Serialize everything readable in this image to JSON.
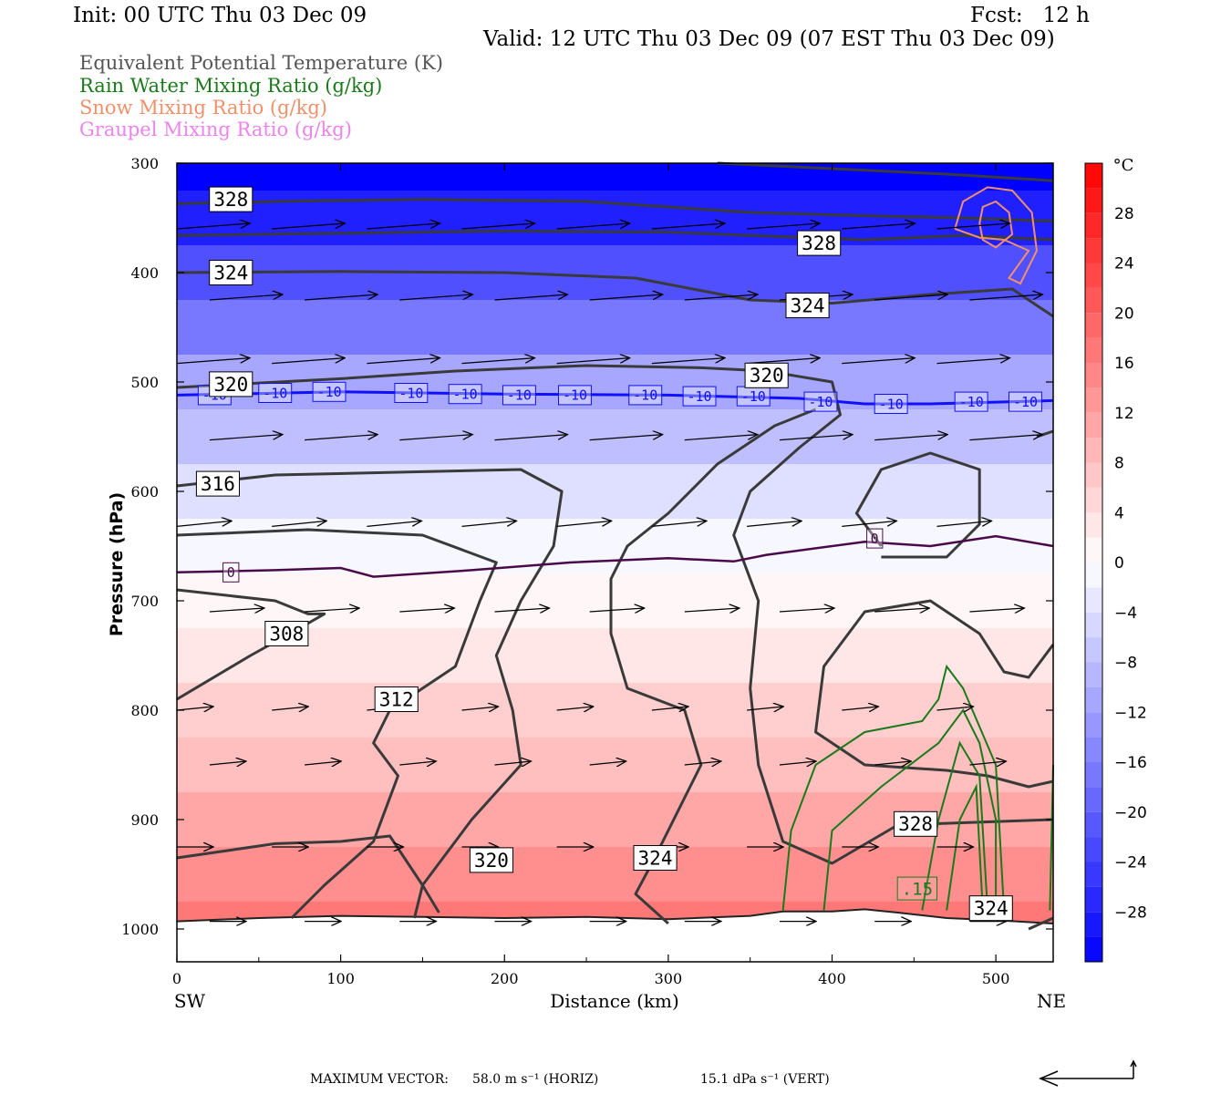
{
  "header": {
    "init": "Init: 00 UTC Thu 03 Dec 09",
    "fcst": "Fcst:   12 h",
    "valid": "Valid: 12 UTC Thu 03 Dec 09 (07 EST Thu 03 Dec 09)"
  },
  "variables": [
    {
      "label": "Equivalent Potential Temperature (K)",
      "color": "#555555"
    },
    {
      "label": "Rain Water Mixing Ratio (g/kg)",
      "color": "#1a7a1a"
    },
    {
      "label": "Snow Mixing Ratio (g/kg)",
      "color": "#f0906a"
    },
    {
      "label": "Graupel Mixing Ratio (g/kg)",
      "color": "#ee82ee"
    }
  ],
  "footer": {
    "max_vector_label": "MAXIMUM VECTOR:",
    "horiz": "58.0 m s⁻¹ (HORIZ)",
    "vert": "15.1 dPa s⁻¹ (VERT)"
  },
  "chart_data": {
    "type": "cross-section",
    "xlabel": "Distance (km)",
    "ylabel": "Pressure (hPa)",
    "x_left_label": "SW",
    "x_right_label": "NE",
    "xlim": [
      0,
      535
    ],
    "ylim": [
      1030,
      300
    ],
    "xticks": [
      0,
      100,
      200,
      300,
      400,
      500
    ],
    "yticks": [
      300,
      400,
      500,
      600,
      700,
      800,
      900,
      1000
    ],
    "colorbar": {
      "unit": "°C",
      "ticks": [
        28,
        24,
        20,
        16,
        12,
        8,
        4,
        0,
        -4,
        -8,
        -12,
        -16,
        -20,
        -24,
        -28
      ],
      "range": [
        -32,
        32
      ]
    },
    "temperature_layers": [
      {
        "p": 300,
        "t": -32
      },
      {
        "p": 350,
        "t": -28
      },
      {
        "p": 400,
        "t": -22
      },
      {
        "p": 450,
        "t": -17
      },
      {
        "p": 500,
        "t": -11
      },
      {
        "p": 550,
        "t": -8
      },
      {
        "p": 600,
        "t": -4
      },
      {
        "p": 650,
        "t": -1
      },
      {
        "p": 700,
        "t": 1
      },
      {
        "p": 750,
        "t": 3
      },
      {
        "p": 800,
        "t": 6
      },
      {
        "p": 850,
        "t": 8
      },
      {
        "p": 900,
        "t": 11
      },
      {
        "p": 950,
        "t": 14
      },
      {
        "p": 1000,
        "t": 17
      }
    ],
    "isotherm_labels": [
      {
        "text": "-10",
        "x": 23,
        "p": 512
      },
      {
        "text": "-10",
        "x": 60,
        "p": 510
      },
      {
        "text": "-10",
        "x": 93,
        "p": 509
      },
      {
        "text": "-10",
        "x": 143,
        "p": 510
      },
      {
        "text": "-10",
        "x": 176,
        "p": 511
      },
      {
        "text": "-10",
        "x": 209,
        "p": 512
      },
      {
        "text": "-10",
        "x": 243,
        "p": 512
      },
      {
        "text": "-10",
        "x": 286,
        "p": 512
      },
      {
        "text": "-10",
        "x": 319,
        "p": 513
      },
      {
        "text": "-10",
        "x": 352,
        "p": 513
      },
      {
        "text": "-10",
        "x": 393,
        "p": 518
      },
      {
        "text": "-10",
        "x": 436,
        "p": 520
      },
      {
        "text": "-10",
        "x": 485,
        "p": 518
      },
      {
        "text": "-10",
        "x": 518,
        "p": 518
      },
      {
        "text": "0",
        "x": 33,
        "p": 674
      },
      {
        "text": "0",
        "x": 426,
        "p": 643
      }
    ],
    "theta_e_labels": [
      {
        "text": "328",
        "x": 33,
        "p": 333
      },
      {
        "text": "328",
        "x": 392,
        "p": 373
      },
      {
        "text": "324",
        "x": 33,
        "p": 400
      },
      {
        "text": "324",
        "x": 385,
        "p": 430
      },
      {
        "text": "320",
        "x": 33,
        "p": 502
      },
      {
        "text": "320",
        "x": 360,
        "p": 494
      },
      {
        "text": "316",
        "x": 25,
        "p": 593
      },
      {
        "text": "308",
        "x": 67,
        "p": 730
      },
      {
        "text": "312",
        "x": 134,
        "p": 790
      },
      {
        "text": "320",
        "x": 192,
        "p": 937
      },
      {
        "text": "324",
        "x": 292,
        "p": 935
      },
      {
        "text": "328",
        "x": 451,
        "p": 904
      },
      {
        "text": "324",
        "x": 497,
        "p": 981
      }
    ],
    "mixing_ratio_labels": [
      {
        "text": ".15",
        "x": 452,
        "p": 963
      }
    ],
    "wind_rows_p": [
      360,
      425,
      483,
      553,
      632,
      710,
      800,
      850,
      925,
      993
    ]
  }
}
